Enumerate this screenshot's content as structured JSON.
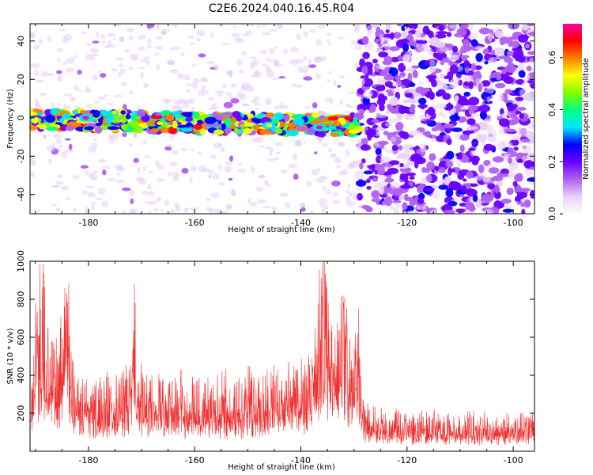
{
  "title": "C2E6.2024.040.16.45.R04",
  "colors": {
    "snr_line": "#f03030",
    "axis": "#000000",
    "colormap": [
      "#ffffff",
      "#e8d0f8",
      "#b060f0",
      "#6a00ff",
      "#0000ff",
      "#00e6ff",
      "#00ff80",
      "#80ff00",
      "#ffff00",
      "#ff8000",
      "#ff0000",
      "#ff00a0"
    ]
  },
  "chart_data": [
    {
      "name": "spectrogram",
      "type": "heatmap",
      "xlabel": "Height of straight line (km)",
      "ylabel": "Frequency (Hz)",
      "xlim": [
        -191,
        -96
      ],
      "ylim": [
        -50,
        49
      ],
      "xticks": [
        -180,
        -160,
        -140,
        -120,
        -100
      ],
      "yticks": [
        -40,
        -20,
        0,
        20,
        40
      ],
      "xtick_labels": [
        "-180",
        "-160",
        "-140",
        "-120",
        "-100"
      ],
      "ytick_labels": [
        "-40",
        "-20",
        "0",
        "20",
        "40"
      ],
      "grid": false,
      "features": [
        {
          "region": "echo band",
          "x_range": [
            -191,
            -129
          ],
          "frequency_center": -1,
          "frequency_width": 10,
          "amplitude_range": [
            0.3,
            0.65
          ]
        },
        {
          "region": "peak echoes",
          "x_values": [
            -180.5,
            -146,
            -136.5
          ],
          "frequency": [
            0,
            -4,
            -5
          ],
          "amplitude": [
            0.7,
            0.55,
            0.7
          ]
        },
        {
          "region": "noise, sparse",
          "x_range": [
            -191,
            -129
          ],
          "frequency_range": [
            -50,
            49
          ],
          "amplitude_range": [
            0.0,
            0.15
          ]
        },
        {
          "region": "noise, dense",
          "x_range": [
            -129,
            -96
          ],
          "frequency_range": [
            -50,
            49
          ],
          "amplitude_range": [
            0.1,
            0.25
          ]
        }
      ],
      "colorbar": {
        "label": "Normalized spectral amplitude",
        "range": [
          0.0,
          0.73
        ],
        "ticks": [
          0.0,
          0.2,
          0.4,
          0.6
        ],
        "tick_labels": [
          "0.0",
          "0.2",
          "0.4",
          "0.6"
        ]
      }
    },
    {
      "name": "snr",
      "type": "line",
      "xlabel": "Height of straight line (km)",
      "ylabel": "SNR (10 * v/v)",
      "xlim": [
        -191,
        -96
      ],
      "ylim": [
        0,
        1000
      ],
      "xticks": [
        -180,
        -160,
        -140,
        -120,
        -100
      ],
      "yticks": [
        200,
        400,
        600,
        800,
        1000
      ],
      "xtick_labels": [
        "-180",
        "-160",
        "-140",
        "-120",
        "-100"
      ],
      "ytick_labels": [
        "200",
        "400",
        "600",
        "800",
        "1000"
      ],
      "grid": false,
      "series": [
        {
          "x": [
            -191,
            -190,
            -189,
            -188.5,
            -188,
            -187,
            -186,
            -185,
            -184.5,
            -184,
            -183.5,
            -183,
            -182,
            -180,
            -178,
            -176,
            -174,
            -172,
            -171.5,
            -171,
            -170,
            -168,
            -166,
            -164,
            -162,
            -160,
            -158,
            -156,
            -154,
            -152,
            -150,
            -148,
            -146,
            -144,
            -142,
            -140,
            -138,
            -137,
            -136.5,
            -136,
            -135.5,
            -135,
            -134,
            -133,
            -132,
            -131,
            -130,
            -129.5,
            -129,
            -128.5,
            -128,
            -126,
            -124,
            -122,
            -120,
            -118,
            -116,
            -114,
            -112,
            -110,
            -108,
            -106,
            -104,
            -102,
            -100,
            -98,
            -96
          ],
          "y": [
            250,
            580,
            700,
            820,
            560,
            460,
            420,
            520,
            830,
            860,
            580,
            430,
            340,
            300,
            290,
            330,
            320,
            360,
            690,
            440,
            340,
            300,
            320,
            310,
            290,
            300,
            270,
            310,
            300,
            280,
            330,
            320,
            340,
            330,
            360,
            380,
            420,
            530,
            700,
            810,
            990,
            620,
            520,
            550,
            600,
            520,
            430,
            470,
            560,
            250,
            200,
            180,
            160,
            170,
            150,
            160,
            160,
            150,
            150,
            140,
            150,
            150,
            140,
            150,
            150,
            160,
            150
          ]
        }
      ]
    }
  ]
}
